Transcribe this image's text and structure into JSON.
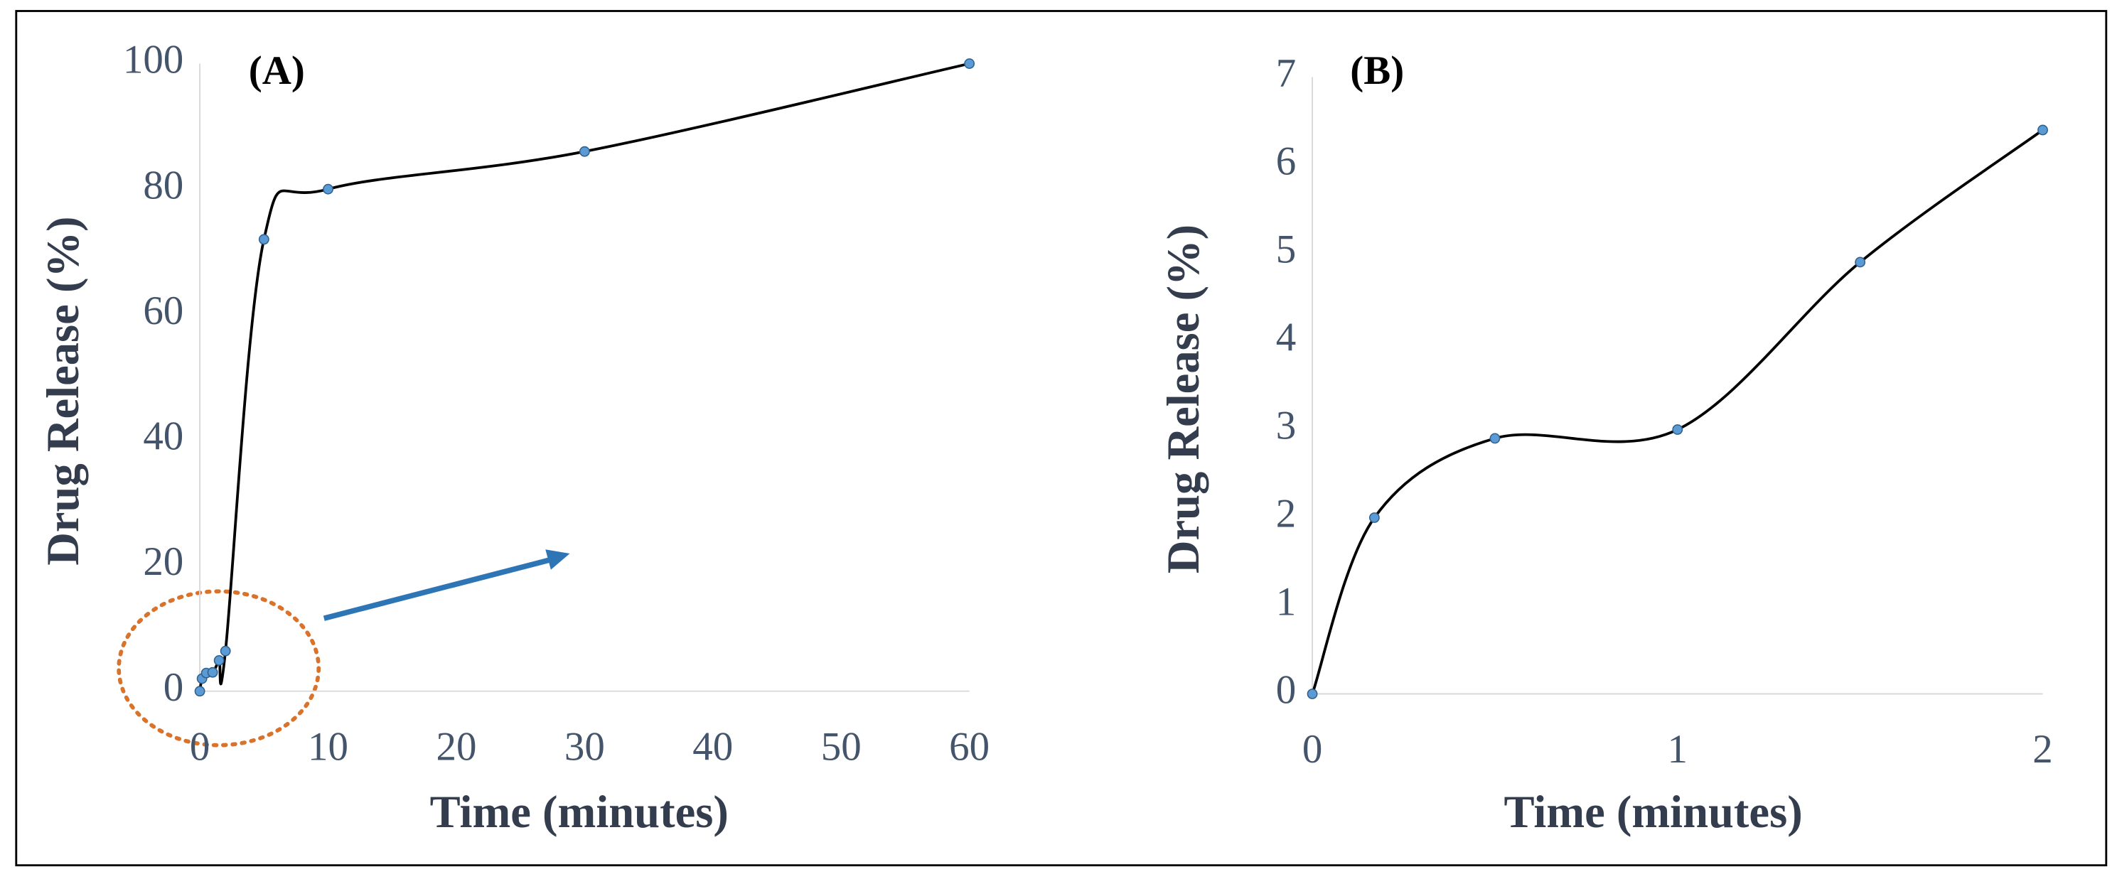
{
  "chart_data": [
    {
      "type": "line",
      "title": "(A)",
      "x_label": "Time (minutes)",
      "y_label": "Drug Release (%)",
      "x": [
        0,
        0.17,
        0.5,
        1,
        1.5,
        2,
        5,
        10,
        30,
        60
      ],
      "values": [
        0,
        2,
        2.9,
        3,
        4.9,
        6.4,
        72,
        80,
        86,
        100
      ],
      "color": "#000000",
      "marker_color": "#5b9bd5",
      "xlim": [
        0,
        60
      ],
      "xticks": [
        0,
        10,
        20,
        30,
        40,
        50,
        60
      ],
      "ylim": [
        0,
        100
      ],
      "yticks": [
        0,
        20,
        40,
        60,
        80,
        100
      ],
      "grid": false
    },
    {
      "type": "line",
      "title": "(B)",
      "x_label": "Time (minutes)",
      "y_label": "Drug Release (%)",
      "x": [
        0,
        0.17,
        0.5,
        1,
        1.5,
        2
      ],
      "values": [
        0,
        2,
        2.9,
        3,
        4.9,
        6.4
      ],
      "color": "#000000",
      "marker_color": "#5b9bd5",
      "xlim": [
        0,
        2
      ],
      "xticks": [
        0,
        1,
        2
      ],
      "ylim": [
        0,
        7
      ],
      "yticks": [
        0,
        1,
        2,
        3,
        4,
        5,
        6,
        7
      ],
      "grid": false
    }
  ]
}
